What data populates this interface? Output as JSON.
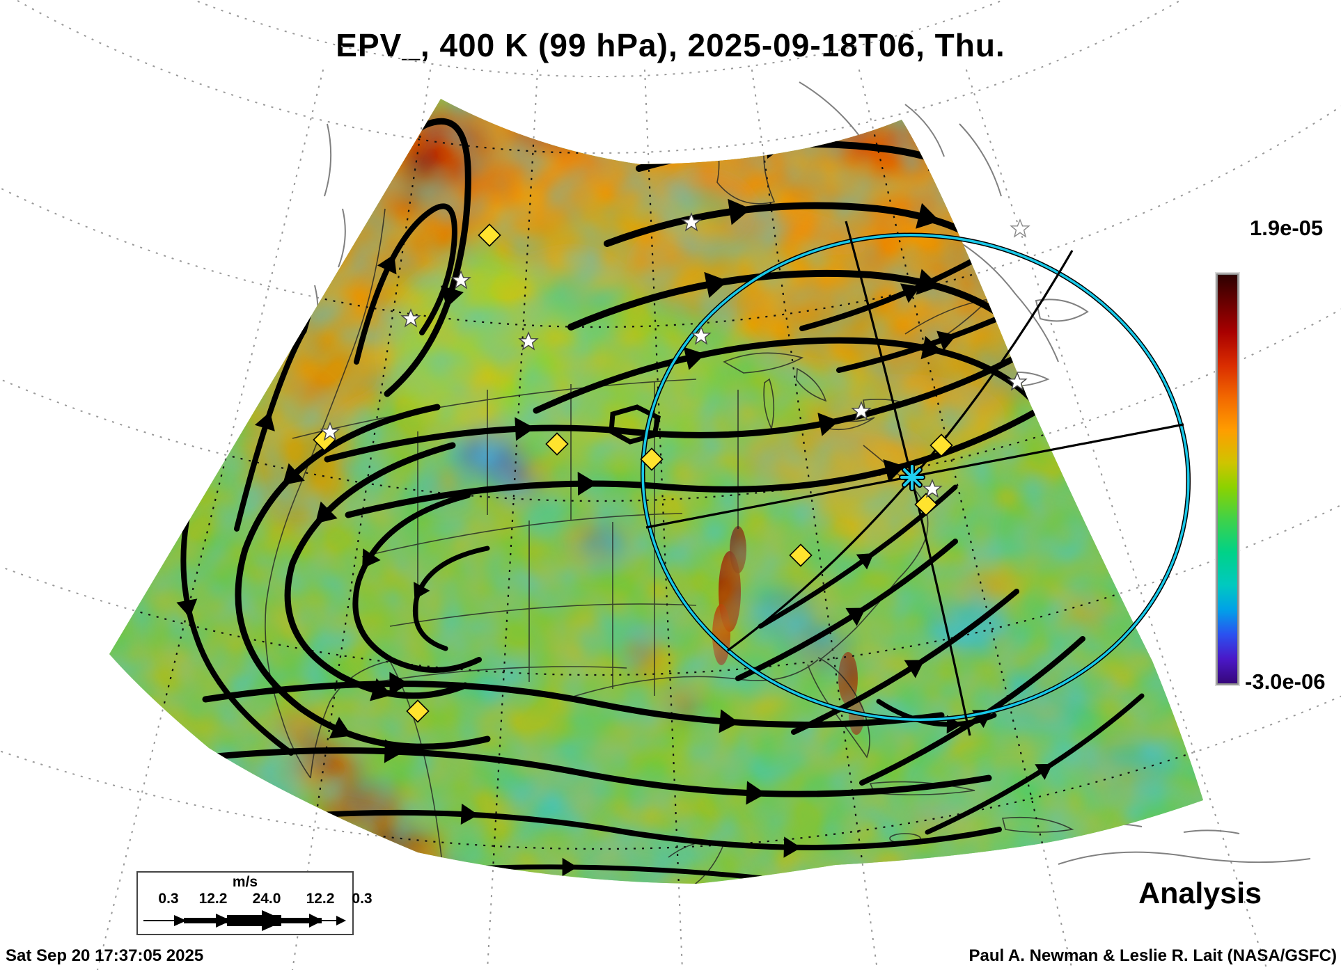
{
  "title": "EPV_, 400 K (99 hPa), 2025-09-18T06, Thu.",
  "colorbar": {
    "max_label": "1.9e-05",
    "min_label": "-3.0e-06",
    "top_color": "#2d0000",
    "bottom_color": "#36077a"
  },
  "wind_legend": {
    "units": "m/s",
    "ticks": [
      "0.3",
      "12.2",
      "24.0",
      "12.2",
      "0.3"
    ]
  },
  "annotation": {
    "status": "Analysis"
  },
  "footer": {
    "generated": "Sat Sep 20 17:37:05 2025",
    "credit": "Paul A. Newman & Leslie R. Lait (NASA/GSFC)"
  },
  "map": {
    "accent_circle_color": "#18c8e8",
    "diamond_marker_color": "#ffe32e",
    "star_marker_color": "#ffffff",
    "center_marker_color": "#20d0f0"
  }
}
